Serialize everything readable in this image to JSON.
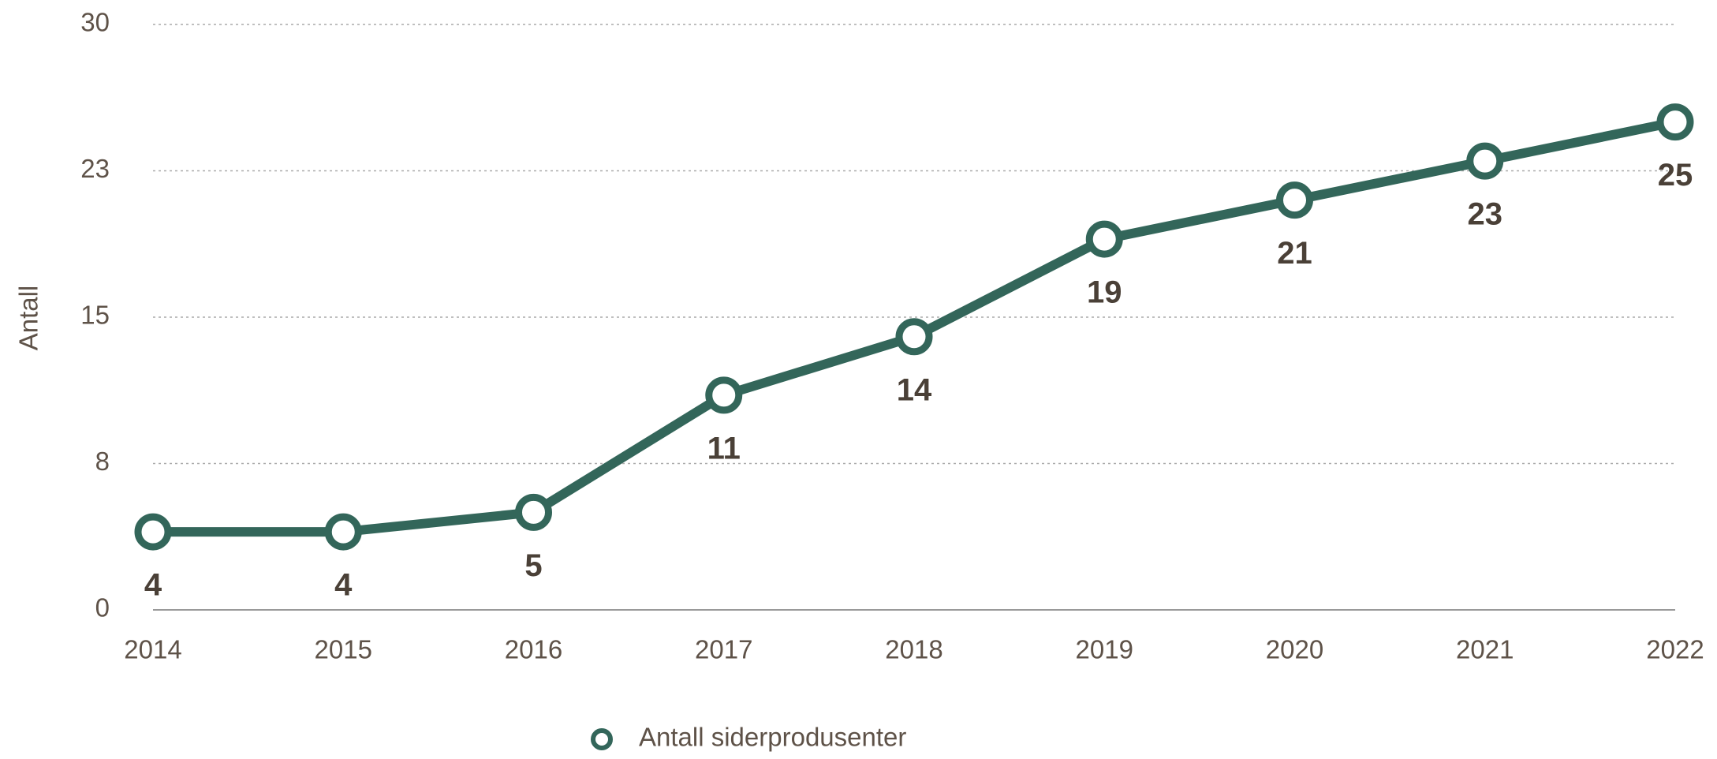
{
  "chart_data": {
    "type": "line",
    "y_label": "Antall",
    "categories": [
      "2014",
      "2015",
      "2016",
      "2017",
      "2018",
      "2019",
      "2020",
      "2021",
      "2022"
    ],
    "series": [
      {
        "name": "Antall siderprodusenter",
        "color": "#33665a",
        "values": [
          4,
          4,
          5,
          11,
          14,
          19,
          21,
          23,
          25
        ]
      }
    ],
    "ylim": [
      0,
      30
    ],
    "yticks": [
      0,
      {
        "value": 7.5,
        "label": "8"
      },
      15,
      {
        "value": 22.5,
        "label": "23"
      },
      30
    ],
    "grid": true,
    "legend": "bottom"
  }
}
